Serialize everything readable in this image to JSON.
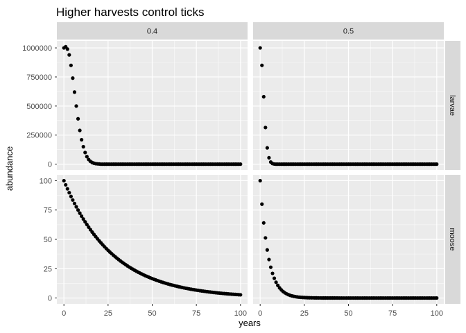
{
  "chart_data": {
    "type": "scatter",
    "title": "Higher harvests control ticks",
    "xlabel": "years",
    "ylabel": "abundance",
    "grid": true,
    "legend": "none",
    "colors": {
      "panel_background": "#ebebeb",
      "strip_background": "#d9d9d9",
      "grid_major": "#ffffff",
      "point": "#000000"
    },
    "facet_columns": [
      "0.4",
      "0.5"
    ],
    "facet_rows": [
      "larvae",
      "moose"
    ],
    "xlim": [
      -4,
      104
    ],
    "x_ticks": [
      0,
      25,
      50,
      75,
      100
    ],
    "x_tick_labels": [
      "0",
      "25",
      "50",
      "75",
      "100"
    ],
    "x_range": [
      0,
      100
    ],
    "rows": [
      {
        "name": "larvae",
        "ylim": [
          -50000,
          1060000
        ],
        "y_ticks": [
          0,
          250000,
          500000,
          750000,
          1000000
        ],
        "y_tick_labels": [
          "0",
          "250000",
          "500000",
          "750000",
          "1000000"
        ]
      },
      {
        "name": "moose",
        "ylim": [
          -5,
          105
        ],
        "y_ticks": [
          0,
          25,
          50,
          75,
          100
        ],
        "y_tick_labels": [
          "0",
          "25",
          "50",
          "75",
          "100"
        ]
      }
    ],
    "panels": [
      {
        "column": "0.4",
        "row": "larvae",
        "points": [
          [
            0,
            1000000
          ],
          [
            1,
            1010000
          ],
          [
            2,
            990000
          ],
          [
            3,
            940000
          ],
          [
            4,
            850000
          ],
          [
            5,
            740000
          ],
          [
            6,
            620000
          ],
          [
            7,
            500000
          ],
          [
            8,
            390000
          ],
          [
            9,
            290000
          ],
          [
            10,
            210000
          ],
          [
            11,
            150000
          ],
          [
            12,
            100000
          ],
          [
            13,
            65000
          ],
          [
            14,
            40000
          ],
          [
            15,
            24000
          ],
          [
            16,
            14000
          ],
          [
            17,
            8000
          ],
          [
            18,
            4500
          ],
          [
            19,
            2500
          ],
          [
            20,
            1300
          ]
        ],
        "tail_value": 0
      },
      {
        "column": "0.5",
        "row": "larvae",
        "points": [
          [
            0,
            1000000
          ],
          [
            1,
            850000
          ],
          [
            2,
            580000
          ],
          [
            3,
            315000
          ],
          [
            4,
            140000
          ],
          [
            5,
            55000
          ],
          [
            6,
            18000
          ],
          [
            7,
            5000
          ],
          [
            8,
            1200
          ]
        ],
        "tail_value": 0
      },
      {
        "column": "0.4",
        "row": "moose",
        "exponential": {
          "start": 100,
          "rate": 0.036
        }
      },
      {
        "column": "0.5",
        "row": "moose",
        "exponential": {
          "start": 100,
          "rate": 0.223
        }
      }
    ]
  }
}
